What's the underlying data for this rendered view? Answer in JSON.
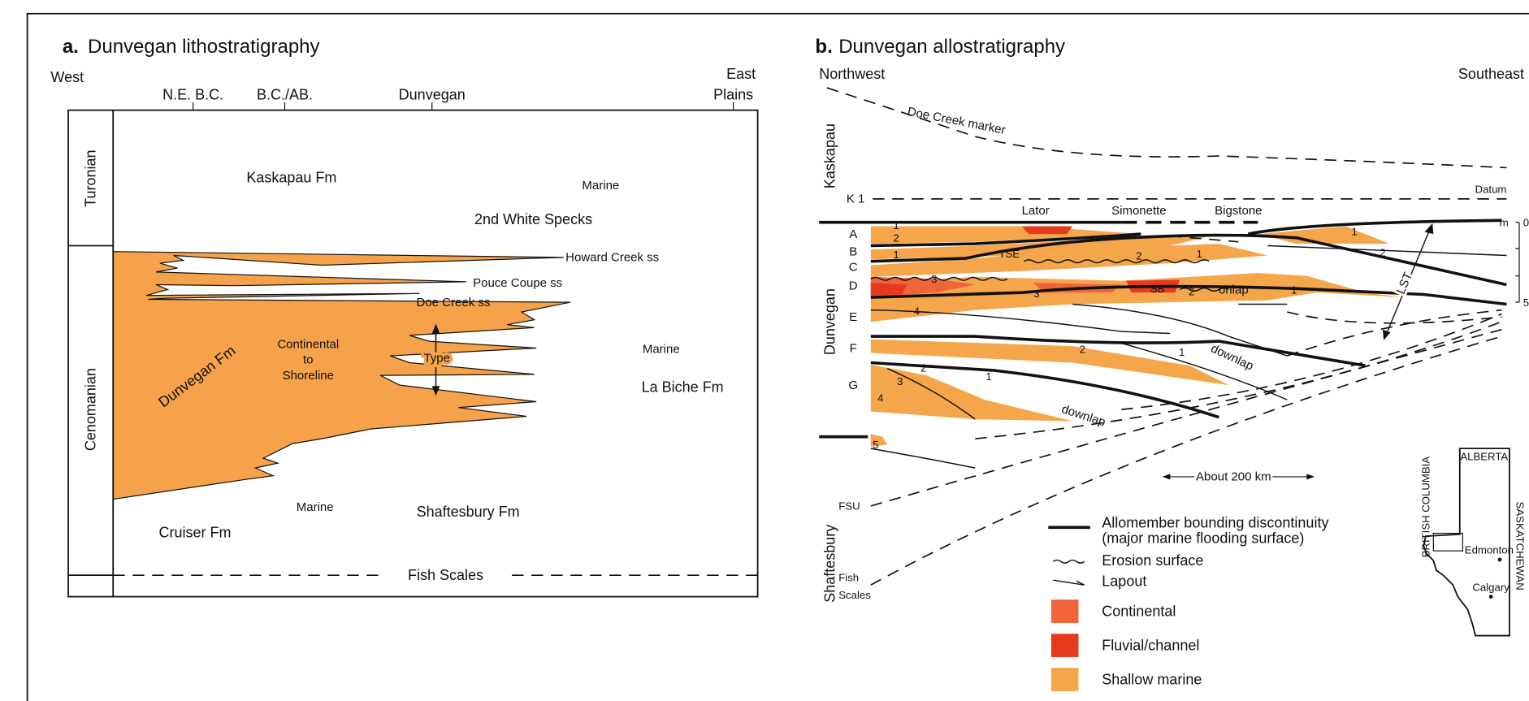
{
  "panel_a": {
    "label": "a.",
    "title": "Dunvegan lithostratigraphy",
    "west": "West",
    "east": "East",
    "locations": [
      "N.E. B.C.",
      "B.C./AB.",
      "Dunvegan",
      "Plains"
    ],
    "stages": [
      "Turonian",
      "Cenomanian"
    ],
    "units": [
      "Kaskapau Fm",
      "Marine",
      "2nd White Specks",
      "Howard Creek ss",
      "Pouce Coupe ss",
      "Doe Creek ss",
      "Marine",
      "La Biche Fm",
      "Dunvegan Fm",
      "Continental",
      "to",
      "Shoreline",
      "Type",
      "Cruiser Fm",
      "Marine",
      "Shaftesbury Fm",
      "Fish Scales"
    ]
  },
  "panel_b": {
    "label": "b.",
    "title": "Dunvegan allostratigraphy",
    "northwest": "Northwest",
    "southeast": "Southeast",
    "marker": "Doe Creek marker",
    "groups": [
      "Kaskapau",
      "Dunvegan",
      "Shaftesbury"
    ],
    "surfaces": [
      "K 1",
      "Datum",
      "FSU",
      "Fish",
      "Scales"
    ],
    "wells": [
      "Lator",
      "Simonette",
      "Bigstone"
    ],
    "allomembers": [
      "A",
      "B",
      "C",
      "D",
      "E",
      "F",
      "G"
    ],
    "annotations": [
      "TSE",
      "SB",
      "onlap",
      "downlap",
      "downlap",
      "LST"
    ],
    "numbers": [
      "1",
      "2",
      "1",
      "3",
      "4",
      "3",
      "2",
      "1",
      "2",
      "1",
      "1",
      "2",
      "2",
      "1",
      "2",
      "1",
      "3",
      "4",
      "5"
    ],
    "scale": {
      "unit": "m",
      "ticks": [
        "0",
        "5"
      ]
    },
    "distance": "About 200 km",
    "legend": [
      "Allomember bounding discontinuity",
      "(major marine flooding surface)",
      "Erosion surface",
      "Lapout",
      "Continental",
      "Fluvial/channel",
      "Shallow marine"
    ],
    "map": {
      "title": "ALBERTA",
      "west": "BRITISH COLUMBIA",
      "east": "SASKATCHEWAN",
      "cities": [
        "Edmonton",
        "Calgary"
      ]
    }
  }
}
